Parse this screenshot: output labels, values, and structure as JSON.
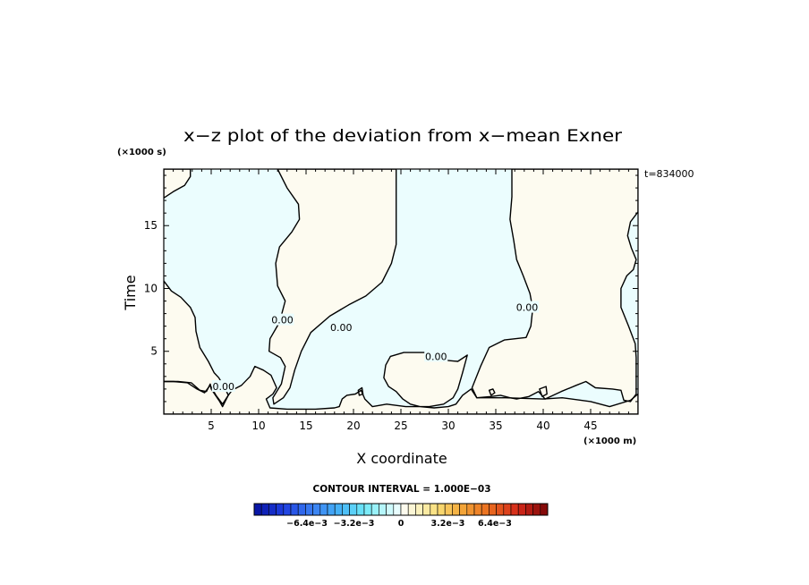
{
  "chart_data": {
    "type": "contour",
    "title": "x−z plot of the deviation from x−mean Exner",
    "xlabel": "X coordinate",
    "ylabel": "Time",
    "x_unit": "(×1000 m)",
    "y_unit": "(×1000 s)",
    "time_label": "t=834000",
    "xlim": [
      0,
      50
    ],
    "ylim": [
      0,
      19.5
    ],
    "x_ticks": [
      5,
      10,
      15,
      20,
      25,
      30,
      35,
      40,
      45
    ],
    "x_tick_labels": [
      "5",
      "10",
      "15",
      "20",
      "25",
      "30",
      "35",
      "40",
      "45"
    ],
    "y_ticks": [
      5,
      10,
      15
    ],
    "y_tick_labels": [
      "5",
      "10",
      "15"
    ],
    "grid": false,
    "contour_interval_label": "CONTOUR INTERVAL = 1.000E−03",
    "contour_label": "0.00",
    "colors": {
      "positive_region": "#fdfbf0",
      "negative_region": "#ebfdfe",
      "line": "#000000"
    },
    "regions": [
      {
        "sign": "positive",
        "points": [
          [
            0,
            19.5
          ],
          [
            2.8,
            19.5
          ],
          [
            2.8,
            18.9
          ],
          [
            2.2,
            18.2
          ],
          [
            1,
            17.7
          ],
          [
            0,
            17.2
          ]
        ]
      },
      {
        "sign": "positive",
        "points": [
          [
            12,
            19.5
          ],
          [
            24.5,
            19.5
          ],
          [
            24.5,
            13.5
          ],
          [
            24,
            12
          ],
          [
            23,
            10.5
          ],
          [
            21.3,
            9.4
          ],
          [
            19.5,
            8.7
          ],
          [
            17.5,
            7.8
          ],
          [
            15.5,
            6.5
          ],
          [
            14.5,
            5
          ],
          [
            13.8,
            3.5
          ],
          [
            13.3,
            2.1
          ],
          [
            12.6,
            1.3
          ],
          [
            11.6,
            0.8
          ],
          [
            11.5,
            1.3
          ],
          [
            12.4,
            2.4
          ],
          [
            12.8,
            3.8
          ],
          [
            12.3,
            4.5
          ],
          [
            11.1,
            5
          ],
          [
            11.2,
            6
          ],
          [
            12.2,
            7.3
          ],
          [
            12.8,
            9
          ],
          [
            12,
            10.2
          ],
          [
            11.8,
            12
          ],
          [
            12.2,
            13.3
          ],
          [
            13.5,
            14.5
          ],
          [
            14.3,
            15.5
          ],
          [
            14.2,
            16.7
          ],
          [
            13,
            18
          ],
          [
            12,
            19.5
          ]
        ]
      },
      {
        "sign": "positive",
        "points": [
          [
            36.7,
            19.5
          ],
          [
            50,
            19.5
          ],
          [
            50,
            16.1
          ],
          [
            49.2,
            15.3
          ],
          [
            48.9,
            14.2
          ],
          [
            49.3,
            13.2
          ],
          [
            49.8,
            12.3
          ],
          [
            49.5,
            11.5
          ],
          [
            48.8,
            11
          ],
          [
            48.2,
            10
          ],
          [
            48.2,
            8.5
          ],
          [
            49,
            7
          ],
          [
            49.7,
            5.6
          ],
          [
            49.8,
            4.5
          ],
          [
            49.8,
            3
          ],
          [
            49.8,
            1.6
          ],
          [
            49.2,
            1
          ],
          [
            48.5,
            1.1
          ],
          [
            48.2,
            1.9
          ],
          [
            47.3,
            2
          ],
          [
            45.5,
            2.1
          ],
          [
            44.5,
            2.6
          ],
          [
            43.5,
            2.3
          ],
          [
            41.9,
            1.8
          ],
          [
            40.2,
            1.2
          ],
          [
            39.5,
            1.8
          ],
          [
            38.5,
            1.4
          ],
          [
            37.2,
            1.2
          ],
          [
            36.5,
            1.3
          ],
          [
            35.5,
            1.5
          ],
          [
            34.5,
            1.4
          ],
          [
            33,
            1.3
          ],
          [
            32.5,
            2.1
          ],
          [
            33.4,
            3.8
          ],
          [
            34.3,
            5.3
          ],
          [
            35.9,
            5.9
          ],
          [
            38.2,
            6.1
          ],
          [
            38.7,
            7
          ],
          [
            38.9,
            8.4
          ],
          [
            38.6,
            9.6
          ],
          [
            37.9,
            11
          ],
          [
            37.2,
            12.3
          ],
          [
            36.9,
            13.8
          ],
          [
            36.5,
            15.5
          ],
          [
            36.7,
            17.3
          ],
          [
            36.7,
            19.5
          ]
        ]
      },
      {
        "sign": "positive",
        "points": [
          [
            0,
            0
          ],
          [
            50,
            0
          ],
          [
            50,
            1.6
          ],
          [
            49.2,
            1.1
          ],
          [
            47,
            0.6
          ],
          [
            45,
            1
          ],
          [
            42,
            1.3
          ],
          [
            40,
            1.2
          ],
          [
            36,
            1.3
          ],
          [
            33,
            1.3
          ],
          [
            32.4,
            2
          ],
          [
            31.5,
            1.5
          ],
          [
            30.8,
            0.8
          ],
          [
            30,
            0.6
          ],
          [
            28.5,
            0.5
          ],
          [
            27,
            0.6
          ],
          [
            26,
            0.8
          ],
          [
            25.2,
            1.2
          ],
          [
            24.5,
            1.8
          ],
          [
            23.7,
            2.2
          ],
          [
            23.2,
            2.9
          ],
          [
            23.4,
            3.9
          ],
          [
            23.9,
            4.6
          ],
          [
            25.3,
            4.9
          ],
          [
            27.7,
            4.9
          ],
          [
            29.5,
            4.3
          ],
          [
            31,
            4.2
          ],
          [
            32,
            4.7
          ],
          [
            31.5,
            3.3
          ],
          [
            31,
            2
          ],
          [
            30.5,
            1.3
          ],
          [
            29.5,
            0.8
          ],
          [
            28,
            0.6
          ],
          [
            25.5,
            0.6
          ],
          [
            23.5,
            0.8
          ],
          [
            22,
            0.6
          ],
          [
            21.2,
            1.2
          ],
          [
            20.8,
            1.9
          ],
          [
            20.2,
            1.6
          ],
          [
            19.3,
            1.5
          ],
          [
            18.8,
            1.2
          ],
          [
            18.5,
            0.6
          ],
          [
            18,
            0.5
          ],
          [
            16,
            0.4
          ],
          [
            13,
            0.4
          ],
          [
            11.2,
            0.5
          ],
          [
            10.8,
            1.2
          ],
          [
            11.5,
            1.6
          ],
          [
            11.9,
            2.1
          ],
          [
            11.3,
            3.1
          ],
          [
            10.5,
            3.5
          ],
          [
            9.6,
            3.8
          ],
          [
            9.1,
            3
          ],
          [
            8.2,
            2.3
          ],
          [
            7.2,
            1.9
          ],
          [
            6.8,
            1.5
          ],
          [
            6.2,
            0.6
          ],
          [
            5.9,
            1
          ],
          [
            5,
            2
          ],
          [
            4.9,
            2.4
          ],
          [
            4.5,
            1.8
          ],
          [
            3.8,
            1.9
          ],
          [
            2.9,
            2.5
          ],
          [
            1.5,
            2.6
          ],
          [
            0,
            2.6
          ]
        ]
      },
      {
        "sign": "positive",
        "points": [
          [
            0,
            10.6
          ],
          [
            0.8,
            9.8
          ],
          [
            1.8,
            9.3
          ],
          [
            2.8,
            8.5
          ],
          [
            3.3,
            7.7
          ],
          [
            3.4,
            6.6
          ],
          [
            3.8,
            5.3
          ],
          [
            4.7,
            4.2
          ],
          [
            5.3,
            3.3
          ],
          [
            5.8,
            2.9
          ],
          [
            6.5,
            2
          ],
          [
            6.8,
            1.5
          ],
          [
            6.2,
            0.8
          ],
          [
            5.5,
            1.5
          ],
          [
            4.9,
            2.3
          ],
          [
            4.3,
            1.7
          ],
          [
            3.5,
            2
          ],
          [
            2.5,
            2.5
          ],
          [
            1,
            2.6
          ],
          [
            0,
            2.6
          ]
        ]
      },
      {
        "sign": "positive",
        "points": [
          [
            39.6,
            2
          ],
          [
            40.3,
            2.2
          ],
          [
            40.4,
            1.6
          ],
          [
            39.9,
            1.4
          ]
        ]
      },
      {
        "sign": "positive",
        "points": [
          [
            34.3,
            1.9
          ],
          [
            34.7,
            2
          ],
          [
            34.9,
            1.7
          ],
          [
            34.5,
            1.5
          ]
        ]
      },
      {
        "sign": "positive",
        "points": [
          [
            20.5,
            1.9
          ],
          [
            20.9,
            2.1
          ],
          [
            21,
            1.6
          ],
          [
            20.6,
            1.5
          ]
        ]
      }
    ],
    "label_positions": [
      [
        6.3,
        2.2
      ],
      [
        12.5,
        7.5
      ],
      [
        18.7,
        6.9
      ],
      [
        28.7,
        4.6
      ],
      [
        38.3,
        8.5
      ]
    ],
    "colorbar": {
      "levels": [
        -0.01,
        -0.0095,
        -0.009,
        -0.0085,
        -0.008,
        -0.0075,
        -0.007,
        -0.0065,
        -0.006,
        -0.0055,
        -0.005,
        -0.0045,
        -0.004,
        -0.0035,
        -0.003,
        -0.0025,
        -0.002,
        -0.0015,
        -0.001,
        -0.0005,
        0,
        0.0005,
        0.001,
        0.0015,
        0.002,
        0.0025,
        0.003,
        0.0035,
        0.004,
        0.0045,
        0.005,
        0.0055,
        0.006,
        0.0065,
        0.007,
        0.0075,
        0.008,
        0.0085,
        0.009,
        0.0095,
        0.01
      ],
      "tick_values": [
        -0.0064,
        -0.0032,
        0,
        0.0032,
        0.0064
      ],
      "tick_labels": [
        "−6.4e−3",
        "−3.2e−3",
        "0",
        "3.2e−3",
        "6.4e−3"
      ],
      "stops": [
        [
          -0.01,
          "#06109e"
        ],
        [
          -0.008,
          "#1e3ee0"
        ],
        [
          -0.006,
          "#3a7ff2"
        ],
        [
          -0.004,
          "#47b8f7"
        ],
        [
          -0.0025,
          "#6ee8f7"
        ],
        [
          -0.0012,
          "#b8f7fb"
        ],
        [
          -0.0002,
          "#ebfdfe"
        ],
        [
          0.0002,
          "#fdfbf0"
        ],
        [
          0.0012,
          "#fbf2c0"
        ],
        [
          0.0025,
          "#f9de78"
        ],
        [
          0.004,
          "#f4ac3c"
        ],
        [
          0.006,
          "#ea6c1e"
        ],
        [
          0.008,
          "#d4281a"
        ],
        [
          0.01,
          "#7a0606"
        ]
      ]
    }
  }
}
